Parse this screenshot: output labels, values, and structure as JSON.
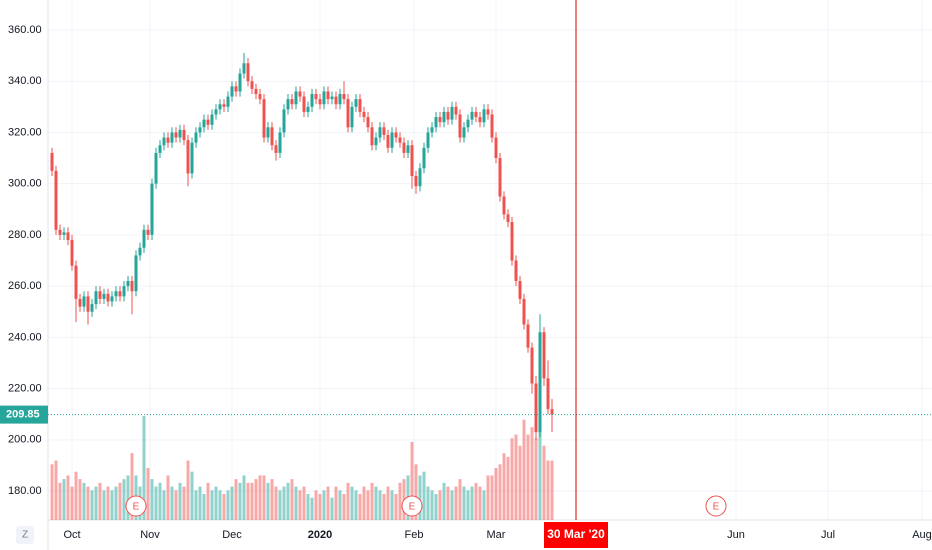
{
  "chart_data": {
    "type": "candlestick",
    "up_color": "#26a69a",
    "down_color": "#ef5350",
    "grid": true,
    "xlim": [
      -1,
      220
    ],
    "ylim": [
      168.7,
      371.7
    ],
    "volume_lim": [
      0,
      140
    ],
    "yticks": [
      {
        "value": 180,
        "label": "180.00"
      },
      {
        "value": 200,
        "label": "200.00"
      },
      {
        "value": 220,
        "label": "220.00"
      },
      {
        "value": 240,
        "label": "240.00"
      },
      {
        "value": 260,
        "label": "260.00"
      },
      {
        "value": 280,
        "label": "280.00"
      },
      {
        "value": 300,
        "label": "300.00"
      },
      {
        "value": 320,
        "label": "320.00"
      },
      {
        "value": 340,
        "label": "340.00"
      },
      {
        "value": 360,
        "label": "360.00"
      }
    ],
    "xticks": [
      {
        "value": 5,
        "label": "Oct"
      },
      {
        "value": 24.5,
        "label": "Nov"
      },
      {
        "value": 45,
        "label": "Dec"
      },
      {
        "value": 67,
        "label": "2020"
      },
      {
        "value": 90.5,
        "label": "Feb"
      },
      {
        "value": 111,
        "label": "Mar"
      },
      {
        "value": 171,
        "label": "Jun"
      },
      {
        "value": 194,
        "label": "Jul"
      },
      {
        "value": 217.5,
        "label": "Aug"
      }
    ],
    "open": [
      312,
      305,
      282,
      280,
      281,
      278,
      268,
      255,
      252,
      256,
      250,
      253,
      258,
      255,
      257,
      254,
      256,
      258,
      256,
      260,
      262,
      258,
      272,
      275,
      282,
      280,
      300,
      312,
      315,
      318,
      316,
      320,
      318,
      321,
      317,
      304,
      316,
      320,
      322,
      325,
      323,
      327,
      329,
      331,
      330,
      334,
      338,
      336,
      343,
      347,
      340,
      337,
      335,
      333,
      318,
      322,
      315,
      312,
      320,
      329,
      333,
      331,
      336,
      334,
      328,
      330,
      335,
      333,
      331,
      336,
      333,
      334,
      331,
      335,
      333,
      322,
      330,
      333,
      328,
      326,
      322,
      315,
      318,
      322,
      319,
      314,
      320,
      318,
      316,
      312,
      315,
      303,
      299,
      306,
      314,
      320,
      322,
      326,
      324,
      328,
      325,
      330,
      327,
      318,
      322,
      325,
      328,
      326,
      324,
      329,
      327,
      318,
      310,
      295,
      288,
      285,
      270,
      262,
      255,
      245,
      236,
      222,
      203,
      242,
      224,
      212
    ],
    "high": [
      314,
      307,
      284,
      283,
      283,
      280,
      270,
      257,
      258,
      258,
      255,
      260,
      260,
      259,
      259,
      258,
      260,
      260,
      262,
      264,
      264,
      274,
      277,
      284,
      284,
      302,
      314,
      317,
      320,
      320,
      322,
      322,
      323,
      323,
      319,
      318,
      322,
      324,
      327,
      327,
      329,
      331,
      333,
      333,
      336,
      340,
      340,
      345,
      351,
      349,
      342,
      339,
      337,
      335,
      324,
      324,
      317,
      322,
      331,
      335,
      335,
      338,
      338,
      336,
      332,
      337,
      337,
      335,
      338,
      338,
      336,
      336,
      337,
      340,
      335,
      332,
      335,
      335,
      330,
      328,
      324,
      320,
      324,
      324,
      321,
      322,
      322,
      320,
      318,
      317,
      317,
      305,
      308,
      316,
      322,
      324,
      328,
      328,
      330,
      330,
      332,
      332,
      329,
      324,
      327,
      330,
      330,
      328,
      331,
      331,
      329,
      320,
      312,
      297,
      290,
      287,
      272,
      264,
      257,
      247,
      238,
      225,
      249,
      244,
      231,
      216
    ],
    "low": [
      303,
      280,
      278,
      278,
      276,
      266,
      246,
      250,
      250,
      245,
      248,
      251,
      253,
      253,
      252,
      252,
      254,
      254,
      254,
      258,
      249,
      256,
      270,
      273,
      278,
      278,
      298,
      310,
      313,
      314,
      314,
      316,
      316,
      315,
      299,
      302,
      314,
      318,
      320,
      321,
      321,
      325,
      327,
      328,
      328,
      332,
      334,
      334,
      341,
      338,
      335,
      333,
      331,
      316,
      316,
      313,
      309,
      310,
      318,
      327,
      329,
      329,
      332,
      326,
      326,
      328,
      331,
      329,
      329,
      331,
      331,
      329,
      329,
      331,
      320,
      320,
      328,
      326,
      324,
      320,
      313,
      313,
      316,
      317,
      312,
      312,
      316,
      314,
      310,
      310,
      298,
      296,
      297,
      304,
      312,
      318,
      320,
      322,
      322,
      323,
      323,
      325,
      316,
      316,
      320,
      323,
      324,
      322,
      322,
      325,
      316,
      308,
      293,
      286,
      283,
      268,
      260,
      253,
      243,
      234,
      218,
      200,
      201,
      221,
      210,
      203
    ],
    "close": [
      305,
      282,
      280,
      281,
      278,
      268,
      255,
      252,
      256,
      250,
      253,
      258,
      255,
      257,
      254,
      256,
      258,
      256,
      260,
      262,
      258,
      272,
      275,
      282,
      280,
      300,
      312,
      315,
      318,
      316,
      320,
      318,
      321,
      317,
      304,
      316,
      320,
      322,
      325,
      323,
      327,
      329,
      331,
      330,
      334,
      338,
      336,
      343,
      347,
      340,
      337,
      335,
      333,
      318,
      322,
      315,
      312,
      320,
      329,
      333,
      331,
      336,
      334,
      328,
      330,
      335,
      333,
      331,
      336,
      333,
      334,
      331,
      335,
      333,
      322,
      330,
      333,
      328,
      326,
      322,
      315,
      318,
      322,
      319,
      314,
      320,
      318,
      316,
      312,
      315,
      303,
      299,
      306,
      314,
      320,
      322,
      326,
      324,
      328,
      325,
      330,
      327,
      318,
      322,
      325,
      328,
      326,
      324,
      329,
      327,
      318,
      310,
      295,
      288,
      285,
      270,
      262,
      255,
      245,
      236,
      222,
      203,
      242,
      224,
      212,
      209.85
    ],
    "volume": [
      15,
      16,
      10,
      11,
      12,
      9,
      13,
      11,
      10,
      9,
      8,
      9,
      10,
      8,
      9,
      8,
      9,
      10,
      11,
      12,
      18,
      12,
      9,
      28,
      14,
      11,
      9,
      10,
      8,
      12,
      9,
      8,
      10,
      9,
      16,
      13,
      8,
      9,
      7,
      10,
      8,
      9,
      8,
      7,
      8,
      9,
      11,
      10,
      12,
      10,
      10,
      11,
      12,
      12,
      10,
      11,
      9,
      8,
      9,
      10,
      11,
      9,
      8,
      9,
      7,
      6,
      8,
      7,
      8,
      9,
      6,
      9,
      8,
      7,
      10,
      9,
      8,
      7,
      9,
      8,
      10,
      9,
      8,
      7,
      9,
      8,
      7,
      10,
      11,
      12,
      21,
      15,
      12,
      13,
      9,
      8,
      7,
      8,
      10,
      9,
      8,
      9,
      11,
      9,
      8,
      9,
      10,
      9,
      8,
      12,
      12,
      14,
      15,
      18,
      17,
      22,
      23,
      20,
      27,
      23,
      25,
      22,
      24,
      20,
      16,
      16
    ],
    "earnings": [
      {
        "x": 21,
        "label": "E"
      },
      {
        "x": 90,
        "label": "E"
      },
      {
        "x": 166,
        "label": "E"
      }
    ],
    "crosshair": {
      "x": 131,
      "label": "30 Mar '20"
    },
    "zoom_button": "Z"
  }
}
